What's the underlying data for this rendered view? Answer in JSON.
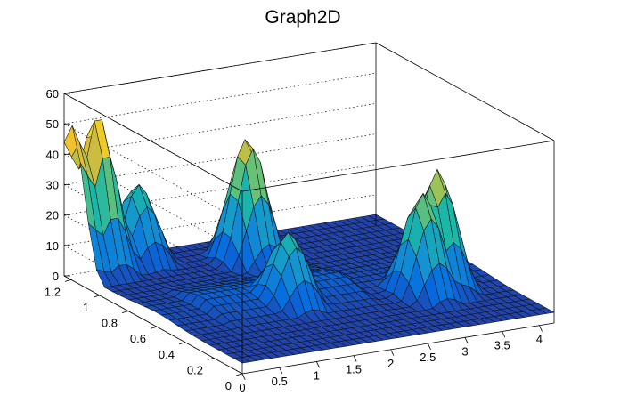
{
  "chart_data": {
    "type": "surface3d",
    "title": "Graph2D",
    "x_axis": {
      "range": [
        0,
        4.2
      ],
      "tick_labels": [
        "0",
        "0.5",
        "1",
        "1.5",
        "2",
        "2.5",
        "3",
        "3.5",
        "4"
      ]
    },
    "y_axis": {
      "range": [
        0,
        1.25
      ],
      "tick_labels": [
        "0",
        "0.2",
        "0.4",
        "0.6",
        "0.8",
        "1",
        "1.2"
      ]
    },
    "z_axis": {
      "range": [
        0,
        60
      ],
      "tick_labels": [
        "0",
        "10",
        "20",
        "30",
        "40",
        "50",
        "60"
      ]
    },
    "grid": true,
    "colormap": "parula",
    "features": [
      {
        "x": 0.0,
        "y": 1.2,
        "z": 51
      },
      {
        "x": 0.35,
        "y": 1.2,
        "z": 53
      },
      {
        "x": 0.9,
        "y": 1.2,
        "z": 28
      },
      {
        "x": 2.0,
        "y": 1.0,
        "z": 44
      },
      {
        "x": 3.5,
        "y": 0.45,
        "z": 41
      },
      {
        "x": 3.2,
        "y": 0.4,
        "z": 36
      },
      {
        "x": 1.6,
        "y": 0.5,
        "z": 24
      }
    ]
  }
}
